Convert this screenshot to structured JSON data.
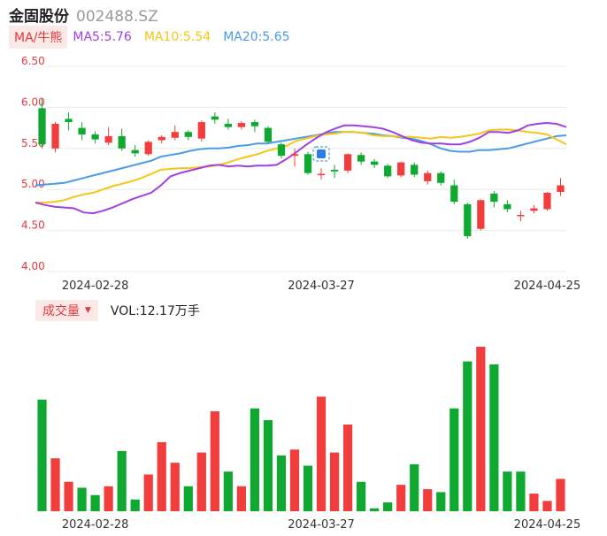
{
  "header": {
    "name": "金固股份",
    "code": "002488.SZ"
  },
  "ma": {
    "button_label": "MA/牛熊",
    "ma5_label": "MA5:5.76",
    "ma10_label": "MA10:5.54",
    "ma20_label": "MA20:5.65",
    "colors": {
      "ma5": "#a040e0",
      "ma10": "#f5c518",
      "ma20": "#4a9be8"
    }
  },
  "volume": {
    "button_label": "成交量",
    "vol_label": "VOL:12.17万手"
  },
  "colors": {
    "up": "#f23d3d",
    "down": "#0fa830",
    "grid": "#e8e8e8",
    "tick": "#e0393e"
  },
  "chart_data": [
    {
      "type": "candlestick",
      "ylim": [
        4.0,
        6.5
      ],
      "yticks": [
        "6.50",
        "6.00",
        "5.50",
        "5.00",
        "4.50",
        "4.00"
      ],
      "xticks": [
        "2024-02-28",
        "2024-03-27",
        "2024-04-25"
      ],
      "xtick_index": [
        4,
        21,
        38
      ],
      "candles": [
        {
          "o": 5.55,
          "c": 5.99,
          "h": 6.1,
          "l": 5.5,
          "up": false
        },
        {
          "o": 5.8,
          "c": 5.5,
          "h": 5.82,
          "l": 5.45,
          "up": true
        },
        {
          "o": 5.82,
          "c": 5.86,
          "h": 5.94,
          "l": 5.72,
          "up": false
        },
        {
          "o": 5.75,
          "c": 5.67,
          "h": 5.82,
          "l": 5.6,
          "up": false
        },
        {
          "o": 5.67,
          "c": 5.61,
          "h": 5.71,
          "l": 5.56,
          "up": false
        },
        {
          "o": 5.57,
          "c": 5.65,
          "h": 5.76,
          "l": 5.54,
          "up": true
        },
        {
          "o": 5.65,
          "c": 5.5,
          "h": 5.74,
          "l": 5.47,
          "up": false
        },
        {
          "o": 5.48,
          "c": 5.44,
          "h": 5.54,
          "l": 5.4,
          "up": false
        },
        {
          "o": 5.43,
          "c": 5.58,
          "h": 5.6,
          "l": 5.41,
          "up": true
        },
        {
          "o": 5.6,
          "c": 5.64,
          "h": 5.66,
          "l": 5.56,
          "up": true
        },
        {
          "o": 5.63,
          "c": 5.7,
          "h": 5.78,
          "l": 5.6,
          "up": true
        },
        {
          "o": 5.7,
          "c": 5.64,
          "h": 5.72,
          "l": 5.6,
          "up": false
        },
        {
          "o": 5.62,
          "c": 5.82,
          "h": 5.84,
          "l": 5.58,
          "up": true
        },
        {
          "o": 5.89,
          "c": 5.85,
          "h": 5.94,
          "l": 5.8,
          "up": false
        },
        {
          "o": 5.8,
          "c": 5.76,
          "h": 5.86,
          "l": 5.73,
          "up": false
        },
        {
          "o": 5.76,
          "c": 5.81,
          "h": 5.83,
          "l": 5.73,
          "up": true
        },
        {
          "o": 5.82,
          "c": 5.77,
          "h": 5.85,
          "l": 5.7,
          "up": false
        },
        {
          "o": 5.75,
          "c": 5.58,
          "h": 5.77,
          "l": 5.56,
          "up": false
        },
        {
          "o": 5.55,
          "c": 5.41,
          "h": 5.57,
          "l": 5.38,
          "up": false
        },
        {
          "o": 5.41,
          "c": 5.43,
          "h": 5.5,
          "l": 5.28,
          "up": true
        },
        {
          "o": 5.43,
          "c": 5.2,
          "h": 5.46,
          "l": 5.18,
          "up": false
        },
        {
          "o": 5.18,
          "c": 5.19,
          "h": 5.26,
          "l": 5.12,
          "up": true
        },
        {
          "o": 5.22,
          "c": 5.24,
          "h": 5.3,
          "l": 5.14,
          "up": false
        },
        {
          "o": 5.23,
          "c": 5.43,
          "h": 5.44,
          "l": 5.2,
          "up": true
        },
        {
          "o": 5.42,
          "c": 5.34,
          "h": 5.45,
          "l": 5.3,
          "up": false
        },
        {
          "o": 5.34,
          "c": 5.3,
          "h": 5.37,
          "l": 5.26,
          "up": false
        },
        {
          "o": 5.29,
          "c": 5.16,
          "h": 5.31,
          "l": 5.14,
          "up": false
        },
        {
          "o": 5.17,
          "c": 5.33,
          "h": 5.34,
          "l": 5.15,
          "up": true
        },
        {
          "o": 5.3,
          "c": 5.18,
          "h": 5.33,
          "l": 5.15,
          "up": false
        },
        {
          "o": 5.1,
          "c": 5.2,
          "h": 5.23,
          "l": 5.06,
          "up": true
        },
        {
          "o": 5.2,
          "c": 5.08,
          "h": 5.22,
          "l": 5.05,
          "up": false
        },
        {
          "o": 5.05,
          "c": 4.85,
          "h": 5.12,
          "l": 4.82,
          "up": false
        },
        {
          "o": 4.82,
          "c": 4.43,
          "h": 4.84,
          "l": 4.4,
          "up": false
        },
        {
          "o": 4.52,
          "c": 4.87,
          "h": 4.88,
          "l": 4.5,
          "up": true
        },
        {
          "o": 4.95,
          "c": 4.85,
          "h": 4.98,
          "l": 4.78,
          "up": false
        },
        {
          "o": 4.82,
          "c": 4.76,
          "h": 4.87,
          "l": 4.72,
          "up": false
        },
        {
          "o": 4.69,
          "c": 4.69,
          "h": 4.74,
          "l": 4.61,
          "up": true
        },
        {
          "o": 4.74,
          "c": 4.77,
          "h": 4.81,
          "l": 4.71,
          "up": true
        },
        {
          "o": 4.76,
          "c": 4.96,
          "h": 4.97,
          "l": 4.74,
          "up": true
        },
        {
          "o": 4.97,
          "c": 5.05,
          "h": 5.14,
          "l": 4.92,
          "up": true
        }
      ],
      "ma5": [
        4.84,
        4.81,
        4.79,
        4.78,
        4.77,
        4.72,
        4.71,
        4.74,
        4.78,
        4.83,
        4.88,
        4.92,
        4.96,
        5.05,
        5.16,
        5.2,
        5.23,
        5.26,
        5.29,
        5.3,
        5.28,
        5.29,
        5.28,
        5.29,
        5.29,
        5.3,
        5.37,
        5.45,
        5.54,
        5.62,
        5.69,
        5.74,
        5.78,
        5.78,
        5.77,
        5.76,
        5.74,
        5.7,
        5.65,
        5.6,
        5.57,
        5.56,
        5.56,
        5.55,
        5.55,
        5.58,
        5.63,
        5.7,
        5.7,
        5.69,
        5.72,
        5.78,
        5.8,
        5.81,
        5.8,
        5.76
      ],
      "ma10": [
        4.84,
        4.84,
        4.85,
        4.87,
        4.91,
        4.94,
        4.96,
        5.0,
        5.04,
        5.07,
        5.1,
        5.14,
        5.19,
        5.24,
        5.25,
        5.26,
        5.26,
        5.27,
        5.28,
        5.3,
        5.33,
        5.37,
        5.4,
        5.43,
        5.47,
        5.5,
        5.53,
        5.59,
        5.62,
        5.65,
        5.67,
        5.68,
        5.7,
        5.7,
        5.69,
        5.66,
        5.65,
        5.65,
        5.64,
        5.64,
        5.63,
        5.62,
        5.64,
        5.63,
        5.64,
        5.66,
        5.68,
        5.72,
        5.73,
        5.73,
        5.72,
        5.7,
        5.69,
        5.67,
        5.61,
        5.55
      ],
      "ma20": [
        5.05,
        5.06,
        5.07,
        5.08,
        5.11,
        5.14,
        5.17,
        5.2,
        5.23,
        5.26,
        5.29,
        5.32,
        5.35,
        5.4,
        5.42,
        5.44,
        5.47,
        5.49,
        5.5,
        5.5,
        5.51,
        5.53,
        5.54,
        5.56,
        5.56,
        5.58,
        5.6,
        5.62,
        5.64,
        5.66,
        5.68,
        5.7,
        5.7,
        5.7,
        5.69,
        5.68,
        5.66,
        5.65,
        5.63,
        5.62,
        5.59,
        5.55,
        5.5,
        5.47,
        5.46,
        5.46,
        5.48,
        5.48,
        5.49,
        5.5,
        5.53,
        5.56,
        5.59,
        5.62,
        5.65,
        5.66
      ]
    },
    {
      "type": "bar",
      "title": "成交量",
      "xticks": [
        "2024-02-28",
        "2024-03-27",
        "2024-04-25"
      ],
      "values": [
        0.76,
        0.36,
        0.2,
        0.16,
        0.11,
        0.17,
        0.41,
        0.08,
        0.25,
        0.47,
        0.33,
        0.17,
        0.4,
        0.68,
        0.27,
        0.17,
        0.7,
        0.62,
        0.38,
        0.42,
        0.31,
        0.78,
        0.4,
        0.59,
        0.2,
        0.02,
        0.06,
        0.18,
        0.32,
        0.15,
        0.13,
        0.7,
        1.02,
        1.12,
        1.0,
        0.27,
        0.27,
        0.12,
        0.07,
        0.22
      ],
      "up": [
        false,
        true,
        true,
        false,
        false,
        true,
        false,
        false,
        true,
        true,
        true,
        false,
        true,
        true,
        false,
        true,
        false,
        false,
        false,
        true,
        false,
        true,
        true,
        true,
        false,
        false,
        false,
        true,
        false,
        true,
        false,
        false,
        false,
        true,
        false,
        false,
        false,
        true,
        true,
        true
      ]
    }
  ]
}
